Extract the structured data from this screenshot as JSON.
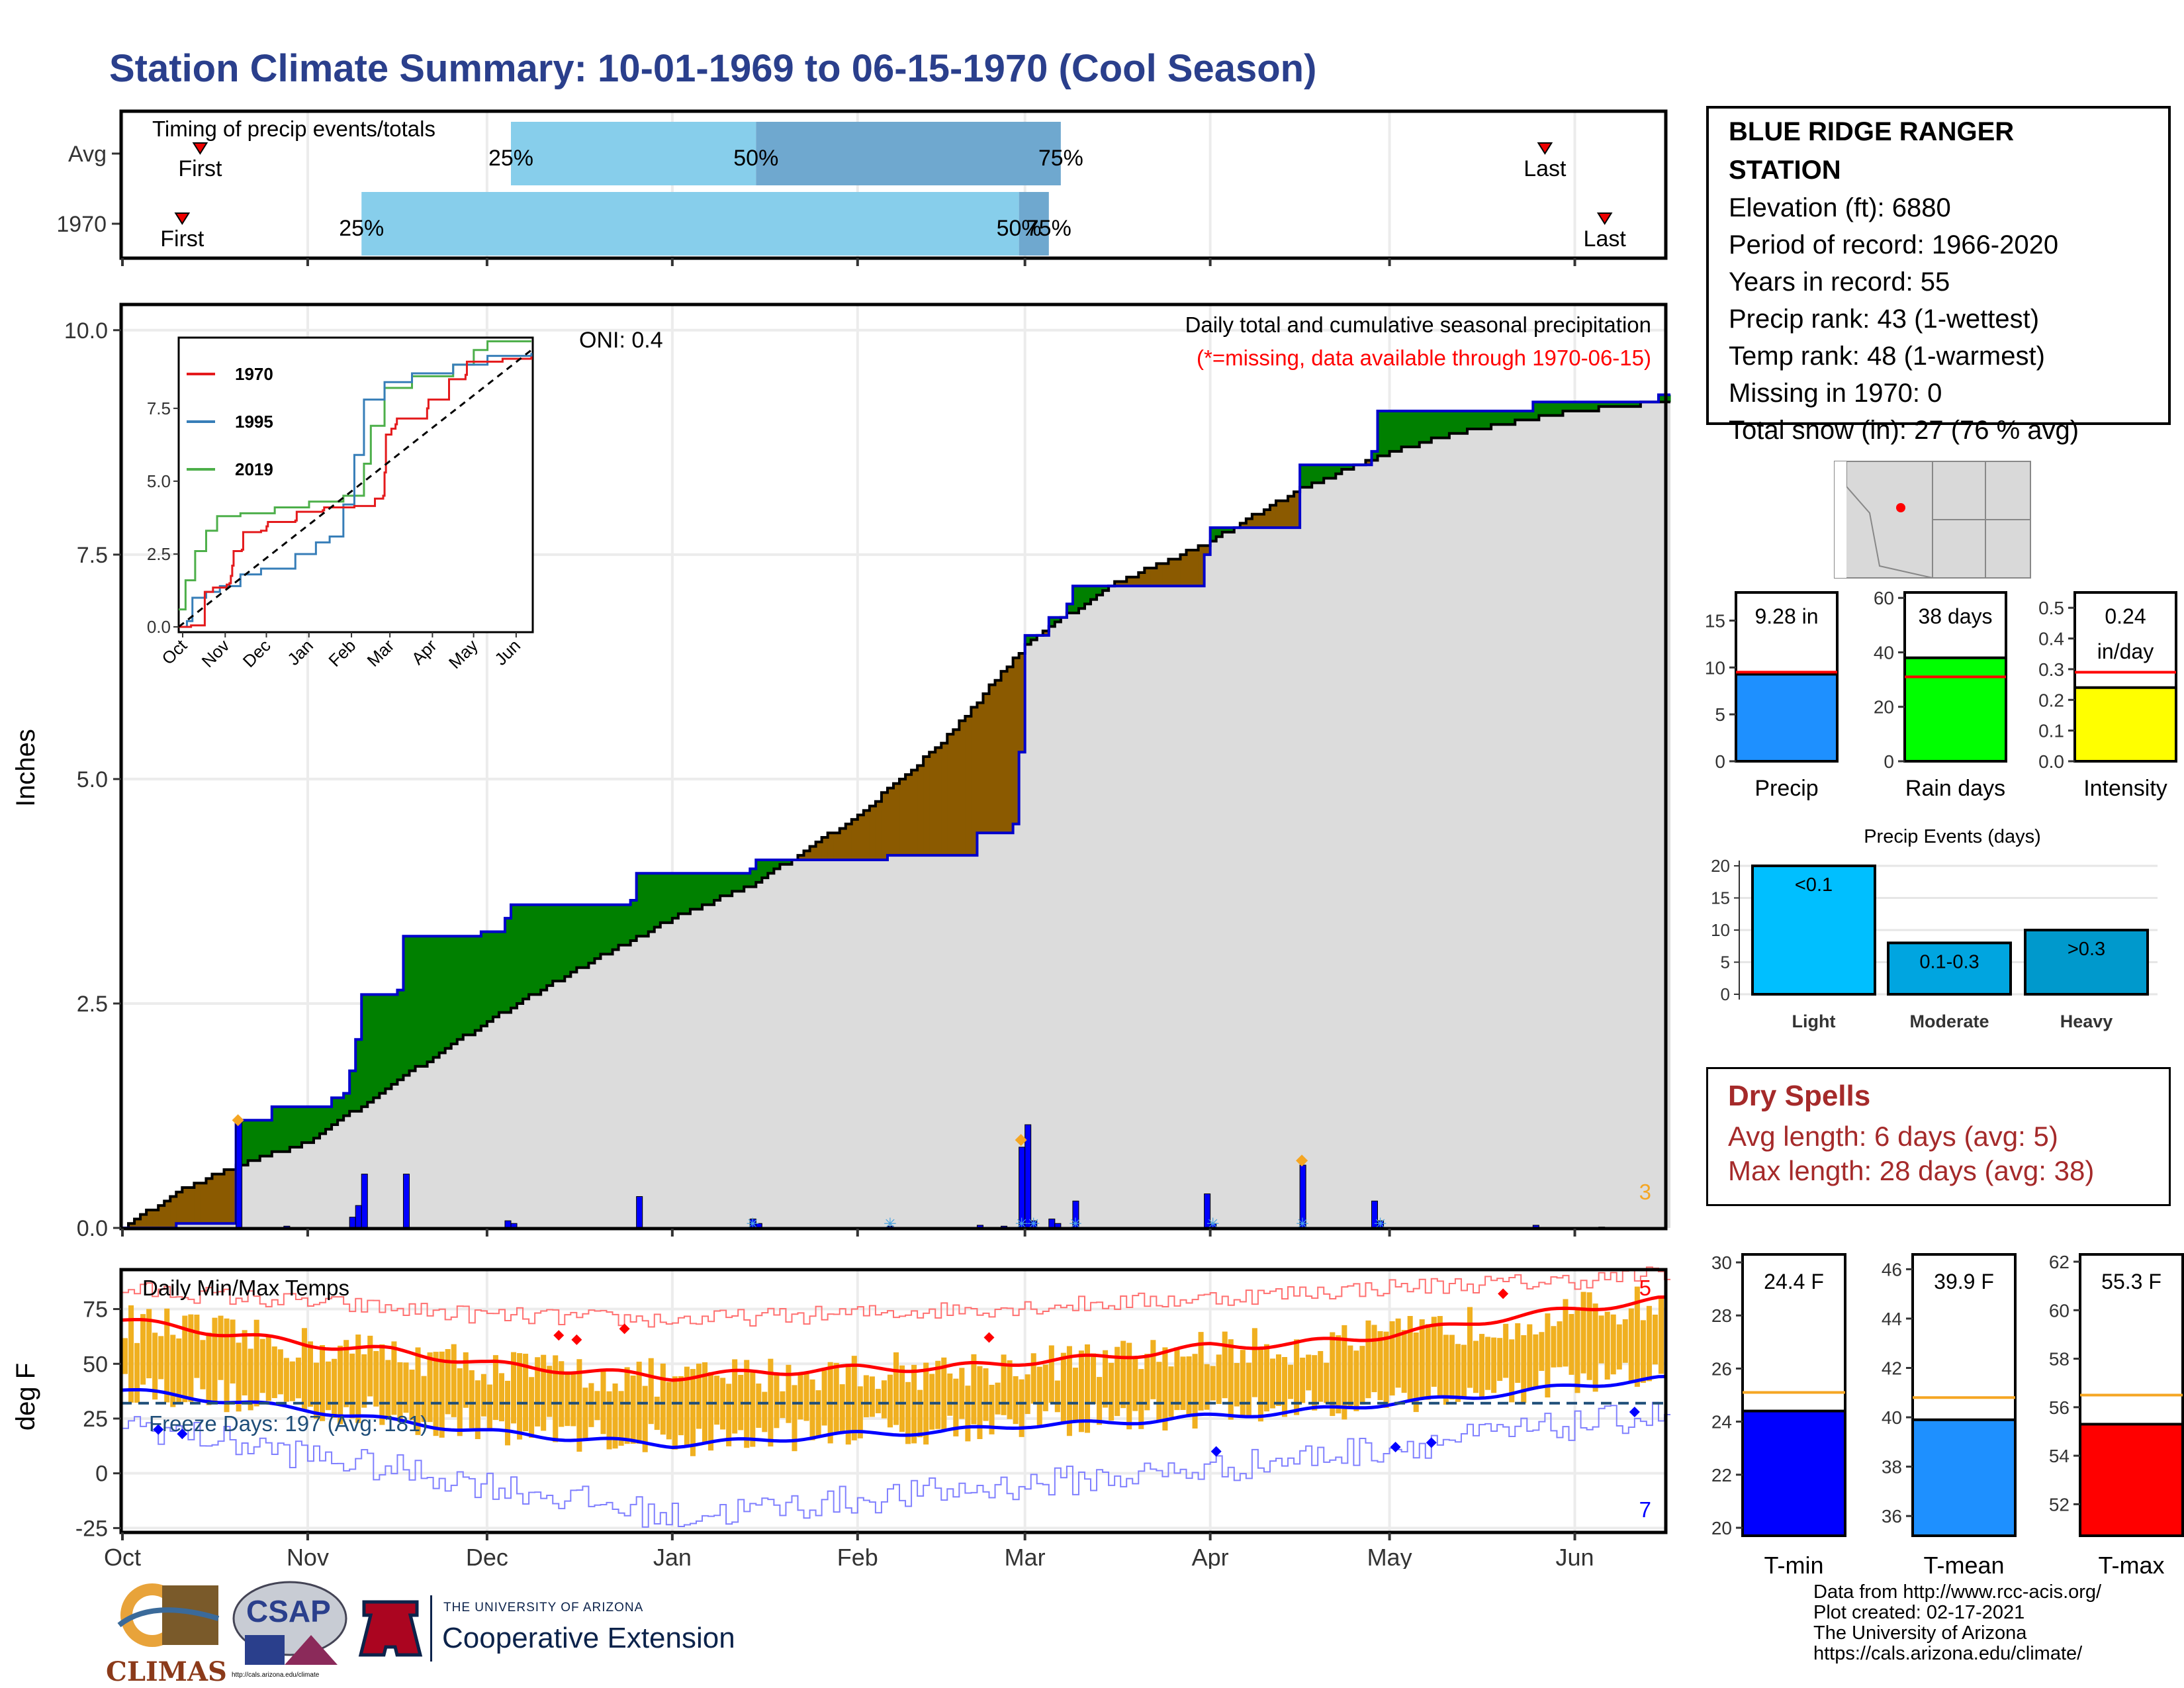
{
  "title": "Station Climate Summary: 10-01-1969 to 06-15-1970 (Cool Season)",
  "station": {
    "name": "BLUE RIDGE RANGER STATION",
    "lines": [
      "Elevation (ft): 6880",
      "Period of record: 1966-2020",
      "Years in record: 55",
      "Precip rank: 43 (1-wettest)",
      "Temp rank: 48 (1-warmest)",
      "Missing in 1970: 0",
      "Total snow (in): 27 (76 % avg)"
    ]
  },
  "timing": {
    "label": "Timing of precip events/totals",
    "rows": [
      "Avg",
      "1970"
    ],
    "first_label": "First",
    "last_label": "Last",
    "pct_labels": [
      "25%",
      "50%",
      "75%"
    ],
    "avg": {
      "first": "1969-10-14",
      "p25": "1969-12-05",
      "p50": "1970-01-15",
      "p75": "1970-03-07",
      "last": "1970-05-27"
    },
    "y1970": {
      "first": "1969-10-11",
      "p25": "1969-11-10",
      "p50": "1970-02-28",
      "p75": "1970-03-05",
      "last": "1970-06-06"
    }
  },
  "months": [
    "Oct",
    "Nov",
    "Dec",
    "Jan",
    "Feb",
    "Mar",
    "Apr",
    "May",
    "Jun"
  ],
  "precip_panel": {
    "ylabel": "Inches",
    "yticks": [
      "0.0",
      "2.5",
      "5.0",
      "7.5",
      "10.0"
    ],
    "oni": "ONI: 0.4",
    "legend_title": "Daily total and cumulative seasonal precipitation",
    "missing_note": "(*=missing, data available through 1970-06-15)",
    "corner_count": "3"
  },
  "inset": {
    "yticks": [
      "0.0",
      "2.5",
      "5.0",
      "7.5"
    ],
    "months": [
      "Oct",
      "Nov",
      "Dec",
      "Jan",
      "Feb",
      "Mar",
      "Apr",
      "May",
      "Jun"
    ],
    "legend": [
      {
        "label": "1970",
        "color": "#e41a1c"
      },
      {
        "label": "1995",
        "color": "#377eb8"
      },
      {
        "label": "2019",
        "color": "#4daf4a"
      }
    ]
  },
  "temp_panel": {
    "ylabel": "deg F",
    "title": "Daily Min/Max Temps",
    "freeze_label": "Freeze Days: 197 (Avg: 181)",
    "yticks": [
      "-25",
      "0",
      "25",
      "50",
      "75"
    ],
    "count_top": "5",
    "count_bottom": "7"
  },
  "small_bars": [
    {
      "label": "Precip",
      "value_text": "9.28 in",
      "yticks": [
        "0",
        "5",
        "10",
        "15"
      ]
    },
    {
      "label": "Rain days",
      "value_text": "38 days",
      "yticks": [
        "0",
        "20",
        "40",
        "60"
      ]
    },
    {
      "label": "Intensity",
      "value_text": "0.24",
      "value_text2": "in/day",
      "yticks": [
        "0.0",
        "0.1",
        "0.2",
        "0.3",
        "0.4",
        "0.5"
      ]
    }
  ],
  "events": {
    "title": "Precip Events (days)",
    "yticks": [
      "0",
      "5",
      "10",
      "15",
      "20"
    ],
    "bars": [
      {
        "category": "Light",
        "label": "<0.1"
      },
      {
        "category": "Moderate",
        "label": "0.1-0.3"
      },
      {
        "category": "Heavy",
        "label": ">0.3"
      }
    ]
  },
  "dry_spells": {
    "title": "Dry Spells",
    "avg_line": "Avg length: 6 days (avg: 5)",
    "max_line": "Max length: 28 days (avg: 38)"
  },
  "temp_bars": [
    {
      "label": "T-min",
      "value_text": "24.4 F",
      "yticks": [
        "20",
        "22",
        "24",
        "26",
        "28",
        "30"
      ]
    },
    {
      "label": "T-mean",
      "value_text": "39.9 F",
      "yticks": [
        "36",
        "38",
        "40",
        "42",
        "44",
        "46"
      ]
    },
    {
      "label": "T-max",
      "value_text": "55.3 F",
      "yticks": [
        "52",
        "54",
        "56",
        "58",
        "60",
        "62"
      ]
    }
  ],
  "footer": {
    "lines": [
      "Data from http://www.rcc-acis.org/",
      "Plot created: 02-17-2021",
      "The University of Arizona",
      "https://cals.arizona.edu/climate/"
    ]
  },
  "logos": {
    "climas": "CLIMAS",
    "csap": "CSAP",
    "csap_url": "http://cals.arizona.edu/climate",
    "ua_small": "THE UNIVERSITY OF ARIZONA",
    "ua_big": "Cooperative Extension"
  },
  "colors": {
    "title": "#2a3f8c",
    "above_avg": "#008000",
    "below_avg": "#8b5a00",
    "cum_fill": "#dcdcdc",
    "daily_bar": "#0000ff",
    "tmax": "#ff0000",
    "tmin": "#0000ff",
    "range_bar": "#f0b020",
    "timing_light": "#87ceeb",
    "timing_dark": "#6fa8cf",
    "dry_spell_text": "#a52a2a"
  },
  "chart_data": [
    {
      "type": "area",
      "title": "Daily total and cumulative seasonal precipitation",
      "ylabel": "Inches",
      "ylim": [
        0,
        10
      ],
      "x_range": [
        "1969-10-01",
        "1970-06-15"
      ],
      "series": [
        {
          "name": "1970",
          "kind": "cumulative",
          "points": [
            [
              "1969-10-01",
              0
            ],
            [
              "1969-10-10",
              0.05
            ],
            [
              "1969-10-19",
              0.05
            ],
            [
              "1969-10-20",
              1.2
            ],
            [
              "1969-10-26",
              1.35
            ],
            [
              "1969-11-05",
              1.45
            ],
            [
              "1969-11-07",
              1.5
            ],
            [
              "1969-11-08",
              1.75
            ],
            [
              "1969-11-09",
              2.1
            ],
            [
              "1969-11-10",
              2.6
            ],
            [
              "1969-11-16",
              2.65
            ],
            [
              "1969-11-17",
              3.25
            ],
            [
              "1969-11-30",
              3.3
            ],
            [
              "1969-12-04",
              3.45
            ],
            [
              "1969-12-05",
              3.6
            ],
            [
              "1969-12-21",
              3.6
            ],
            [
              "1969-12-25",
              3.65
            ],
            [
              "1969-12-26",
              3.95
            ],
            [
              "1970-01-14",
              4.0
            ],
            [
              "1970-01-15",
              4.1
            ],
            [
              "1970-02-05",
              4.1
            ],
            [
              "1970-02-06",
              4.15
            ],
            [
              "1970-02-21",
              4.4
            ],
            [
              "1970-02-27",
              4.5
            ],
            [
              "1970-02-28",
              5.3
            ],
            [
              "1970-03-01",
              6.6
            ],
            [
              "1970-03-05",
              6.8
            ],
            [
              "1970-03-08",
              6.95
            ],
            [
              "1970-03-09",
              7.15
            ],
            [
              "1970-03-31",
              7.5
            ],
            [
              "1970-04-01",
              7.8
            ],
            [
              "1970-04-15",
              7.8
            ],
            [
              "1970-04-16",
              8.5
            ],
            [
              "1970-04-28",
              8.65
            ],
            [
              "1970-04-29",
              9.1
            ],
            [
              "1970-05-23",
              9.1
            ],
            [
              "1970-05-25",
              9.2
            ],
            [
              "1970-06-15",
              9.28
            ]
          ]
        },
        {
          "name": "Avg",
          "kind": "cumulative",
          "points": [
            [
              "1969-10-01",
              0
            ],
            [
              "1969-10-10",
              0.4
            ],
            [
              "1969-10-20",
              0.7
            ],
            [
              "1969-11-01",
              0.95
            ],
            [
              "1969-11-15",
              1.6
            ],
            [
              "1969-12-01",
              2.3
            ],
            [
              "1969-12-15",
              2.85
            ],
            [
              "1970-01-01",
              3.45
            ],
            [
              "1970-01-15",
              3.85
            ],
            [
              "1970-02-01",
              4.6
            ],
            [
              "1970-02-15",
              5.4
            ],
            [
              "1970-03-01",
              6.5
            ],
            [
              "1970-03-15",
              7.15
            ],
            [
              "1970-04-01",
              7.65
            ],
            [
              "1970-04-15",
              8.2
            ],
            [
              "1970-05-01",
              8.65
            ],
            [
              "1970-05-15",
              8.9
            ],
            [
              "1970-06-01",
              9.1
            ],
            [
              "1970-06-15",
              9.2
            ]
          ]
        },
        {
          "name": "Daily",
          "kind": "daily",
          "points": [
            [
              "1969-10-20",
              1.2
            ],
            [
              "1969-10-28",
              0.02
            ],
            [
              "1969-11-08",
              0.12
            ],
            [
              "1969-11-09",
              0.25
            ],
            [
              "1969-11-10",
              0.6
            ],
            [
              "1969-11-17",
              0.6
            ],
            [
              "1969-12-04",
              0.08
            ],
            [
              "1969-12-05",
              0.05
            ],
            [
              "1969-12-26",
              0.35
            ],
            [
              "1970-01-14",
              0.1
            ],
            [
              "1970-01-15",
              0.05
            ],
            [
              "1970-02-06",
              0.02
            ],
            [
              "1970-02-21",
              0.03
            ],
            [
              "1970-02-25",
              0.02
            ],
            [
              "1970-02-28",
              0.9
            ],
            [
              "1970-03-01",
              1.15
            ],
            [
              "1970-03-02",
              0.08
            ],
            [
              "1970-03-05",
              0.1
            ],
            [
              "1970-03-06",
              0.05
            ],
            [
              "1970-03-09",
              0.3
            ],
            [
              "1970-03-31",
              0.38
            ],
            [
              "1970-04-01",
              0.05
            ],
            [
              "1970-04-16",
              0.7
            ],
            [
              "1970-04-28",
              0.3
            ],
            [
              "1970-04-29",
              0.08
            ],
            [
              "1970-05-25",
              0.03
            ],
            [
              "1970-06-05",
              0.01
            ]
          ]
        }
      ]
    },
    {
      "type": "line",
      "title": "Daily Min/Max Temps",
      "ylabel": "deg F",
      "ylim": [
        -27,
        93
      ],
      "x_range": [
        "1969-10-01",
        "1970-06-15"
      ],
      "series": [
        {
          "name": "Avg max",
          "points": [
            [
              "1969-10-01",
              70
            ],
            [
              "1969-10-15",
              65
            ],
            [
              "1969-11-01",
              59
            ],
            [
              "1969-11-15",
              56
            ],
            [
              "1969-12-01",
              50
            ],
            [
              "1969-12-15",
              47
            ],
            [
              "1970-01-01",
              44
            ],
            [
              "1970-01-15",
              46
            ],
            [
              "1970-02-01",
              48
            ],
            [
              "1970-02-15",
              48
            ],
            [
              "1970-03-01",
              51
            ],
            [
              "1970-03-15",
              53
            ],
            [
              "1970-04-01",
              58
            ],
            [
              "1970-04-15",
              59
            ],
            [
              "1970-05-01",
              63
            ],
            [
              "1970-05-15",
              69
            ],
            [
              "1970-06-01",
              75
            ],
            [
              "1970-06-15",
              79
            ]
          ]
        },
        {
          "name": "Avg min",
          "points": [
            [
              "1969-10-01",
              38
            ],
            [
              "1969-10-15",
              34
            ],
            [
              "1969-11-01",
              29
            ],
            [
              "1969-11-15",
              24
            ],
            [
              "1969-12-01",
              19
            ],
            [
              "1969-12-15",
              16
            ],
            [
              "1970-01-01",
              13
            ],
            [
              "1970-01-15",
              15
            ],
            [
              "1970-02-01",
              18
            ],
            [
              "1970-02-15",
              19
            ],
            [
              "1970-03-01",
              22
            ],
            [
              "1970-03-15",
              23
            ],
            [
              "1970-04-01",
              26
            ],
            [
              "1970-04-15",
              28
            ],
            [
              "1970-05-01",
              32
            ],
            [
              "1970-05-15",
              35
            ],
            [
              "1970-06-01",
              40
            ],
            [
              "1970-06-15",
              43
            ]
          ]
        },
        {
          "name": "Record high",
          "points": [
            [
              "1969-10-01",
              84
            ],
            [
              "1969-11-01",
              78
            ],
            [
              "1969-12-01",
              72
            ],
            [
              "1970-01-01",
              70
            ],
            [
              "1970-02-01",
              73
            ],
            [
              "1970-03-01",
              76
            ],
            [
              "1970-04-01",
              80
            ],
            [
              "1970-05-01",
              85
            ],
            [
              "1970-06-01",
              88
            ],
            [
              "1970-06-15",
              91
            ]
          ]
        },
        {
          "name": "Record low",
          "points": [
            [
              "1969-10-01",
              23
            ],
            [
              "1969-11-01",
              8
            ],
            [
              "1969-12-01",
              -5
            ],
            [
              "1970-01-01",
              -20
            ],
            [
              "1970-02-01",
              -12
            ],
            [
              "1970-03-01",
              -5
            ],
            [
              "1970-04-01",
              2
            ],
            [
              "1970-05-01",
              12
            ],
            [
              "1970-06-01",
              22
            ],
            [
              "1970-06-15",
              27
            ]
          ]
        }
      ],
      "freeze_line": 32
    },
    {
      "type": "bar",
      "categories": [
        "Precip",
        "Rain days",
        "Intensity"
      ],
      "values": [
        9.28,
        38,
        0.24
      ],
      "averages": [
        9.5,
        31,
        0.29
      ],
      "ylims": [
        [
          0,
          18
        ],
        [
          0,
          62
        ],
        [
          0,
          0.55
        ]
      ]
    },
    {
      "type": "bar",
      "title": "Precip Events (days)",
      "categories": [
        "Light",
        "Moderate",
        "Heavy"
      ],
      "values": [
        20,
        8,
        10
      ],
      "ylim": [
        0,
        21
      ]
    },
    {
      "type": "bar",
      "categories": [
        "T-min",
        "T-mean",
        "T-max"
      ],
      "values": [
        24.4,
        39.9,
        55.3
      ],
      "averages": [
        25.1,
        40.8,
        56.5
      ],
      "ylims": [
        [
          19.7,
          30.3
        ],
        [
          35.2,
          46.6
        ],
        [
          50.7,
          62.3
        ]
      ]
    }
  ]
}
